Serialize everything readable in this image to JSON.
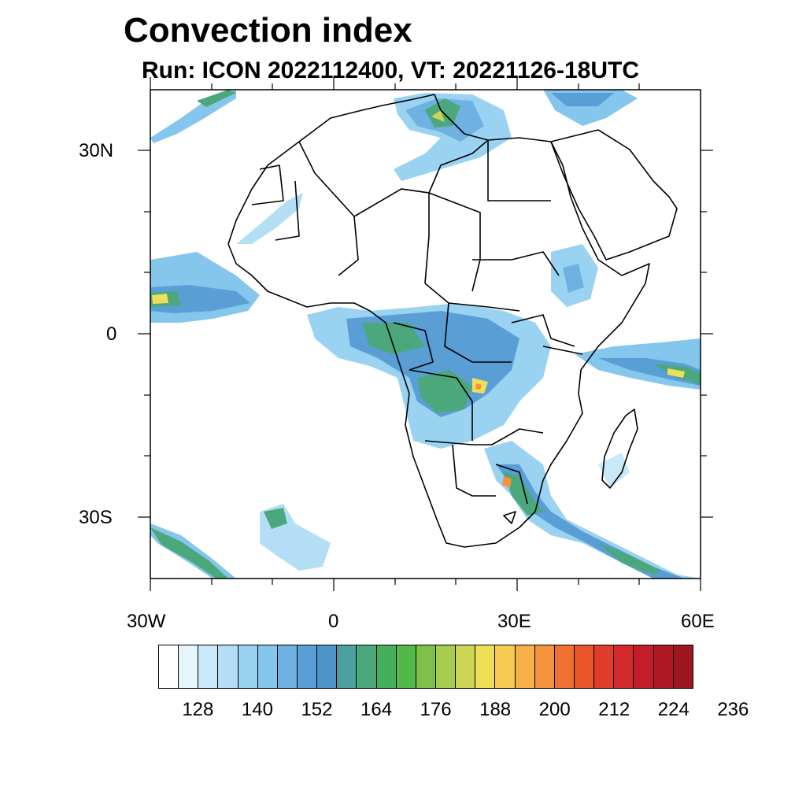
{
  "header": {
    "title": "Convection index",
    "subtitle": "Run: ICON 2022112400,  VT: 20221126-18UTC"
  },
  "map": {
    "region": "Africa",
    "lon_range_deg": [
      -30,
      60
    ],
    "lat_range_deg": [
      -40,
      40
    ],
    "axis_labels": {
      "lat": [
        "30N",
        "0",
        "30S"
      ],
      "lon": [
        "30W",
        "0",
        "30E",
        "60E"
      ]
    }
  },
  "colorbar": {
    "colors": [
      "#ffffff",
      "#e6f4fc",
      "#c9e8f8",
      "#b3def6",
      "#9ad3f2",
      "#85c6ec",
      "#6fb2e2",
      "#5a9ed6",
      "#4e94c6",
      "#4ea0a0",
      "#4aa87c",
      "#45b05a",
      "#52b84a",
      "#7ec04a",
      "#a6cc50",
      "#cbd655",
      "#ede058",
      "#f7cb52",
      "#f6b048",
      "#f5923c",
      "#ef7030",
      "#e8562c",
      "#e03c2c",
      "#d42a2c",
      "#c21e2a",
      "#b01826",
      "#9e1620"
    ],
    "tick_labels": [
      "128",
      "140",
      "152",
      "164",
      "176",
      "188",
      "200",
      "212",
      "224",
      "236"
    ]
  }
}
